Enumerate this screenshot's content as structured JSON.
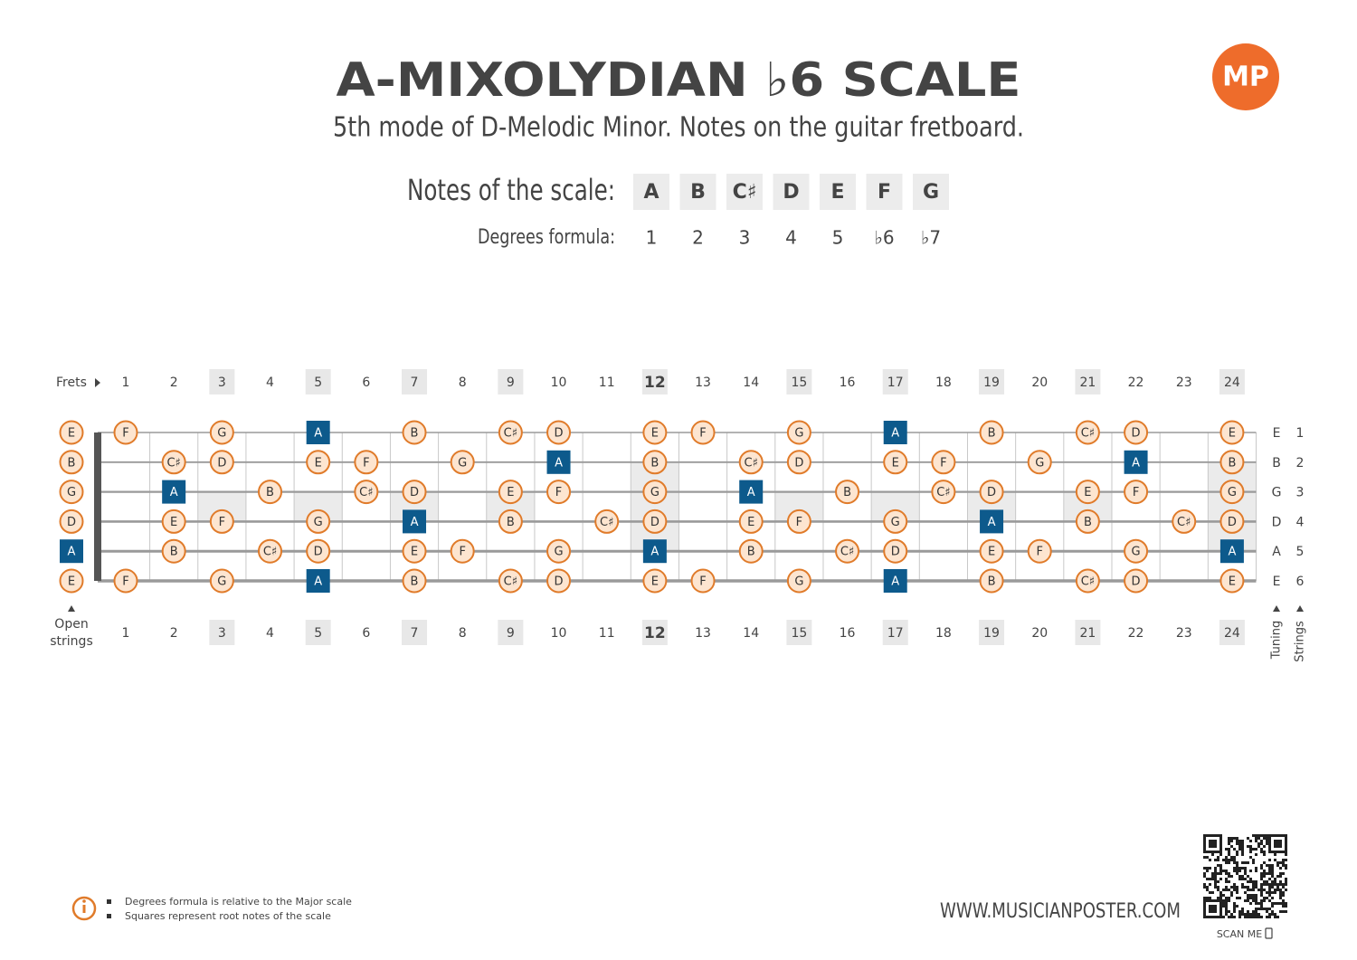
{
  "header": {
    "title": "A-MIXOLYDIAN ♭6 SCALE",
    "subtitle": "5th mode of D-Melodic Minor. Notes on the guitar fretboard.",
    "logo": "MP"
  },
  "scale": {
    "label": "Notes of the scale:",
    "notes": [
      "A",
      "B",
      "C♯",
      "D",
      "E",
      "F",
      "G"
    ]
  },
  "degrees": {
    "label": "Degrees formula:",
    "values": [
      "1",
      "2",
      "3",
      "4",
      "5",
      "♭6",
      "♭7"
    ]
  },
  "fretboard": {
    "frets_label": "Frets",
    "frets": [
      1,
      2,
      3,
      4,
      5,
      6,
      7,
      8,
      9,
      10,
      11,
      12,
      13,
      14,
      15,
      16,
      17,
      18,
      19,
      20,
      21,
      22,
      23,
      24
    ],
    "single_inlays": [
      3,
      5,
      7,
      9,
      15,
      17,
      19,
      21
    ],
    "double_inlays": [
      12,
      24
    ],
    "open_strings_label": [
      "Open",
      "strings"
    ],
    "tuning_label": "Tuning",
    "strings_label": "Strings",
    "tuning": [
      "E",
      "B",
      "G",
      "D",
      "A",
      "E"
    ],
    "string_numbers": [
      1,
      2,
      3,
      4,
      5,
      6
    ],
    "strings": [
      [
        "E",
        "F",
        null,
        "G",
        null,
        "A",
        null,
        "B",
        null,
        "C♯",
        "D",
        null,
        "E",
        "F",
        null,
        "G",
        null,
        "A",
        null,
        "B",
        null,
        "C♯",
        "D",
        null,
        "E"
      ],
      [
        "B",
        null,
        "C♯",
        "D",
        null,
        "E",
        "F",
        null,
        "G",
        null,
        "A",
        null,
        "B",
        null,
        "C♯",
        "D",
        null,
        "E",
        "F",
        null,
        "G",
        null,
        "A",
        null,
        "B"
      ],
      [
        "G",
        null,
        "A",
        null,
        "B",
        null,
        "C♯",
        "D",
        null,
        "E",
        "F",
        null,
        "G",
        null,
        "A",
        null,
        "B",
        null,
        "C♯",
        "D",
        null,
        "E",
        "F",
        null,
        "G"
      ],
      [
        "D",
        null,
        "E",
        "F",
        null,
        "G",
        null,
        "A",
        null,
        "B",
        null,
        "C♯",
        "D",
        null,
        "E",
        "F",
        null,
        "G",
        null,
        "A",
        null,
        "B",
        null,
        "C♯",
        "D"
      ],
      [
        "A",
        null,
        "B",
        null,
        "C♯",
        "D",
        null,
        "E",
        "F",
        null,
        "G",
        null,
        "A",
        null,
        "B",
        null,
        "C♯",
        "D",
        null,
        "E",
        "F",
        null,
        "G",
        null,
        "A"
      ],
      [
        "E",
        "F",
        null,
        "G",
        null,
        "A",
        null,
        "B",
        null,
        "C♯",
        "D",
        null,
        "E",
        "F",
        null,
        "G",
        null,
        "A",
        null,
        "B",
        null,
        "C♯",
        "D",
        null,
        "E"
      ]
    ]
  },
  "footer": {
    "notes": [
      "Degrees formula is relative to the Major scale",
      "Squares represent root notes of the scale"
    ],
    "website": "WWW.MUSICIANPOSTER.COM",
    "scan": "SCAN ME"
  }
}
